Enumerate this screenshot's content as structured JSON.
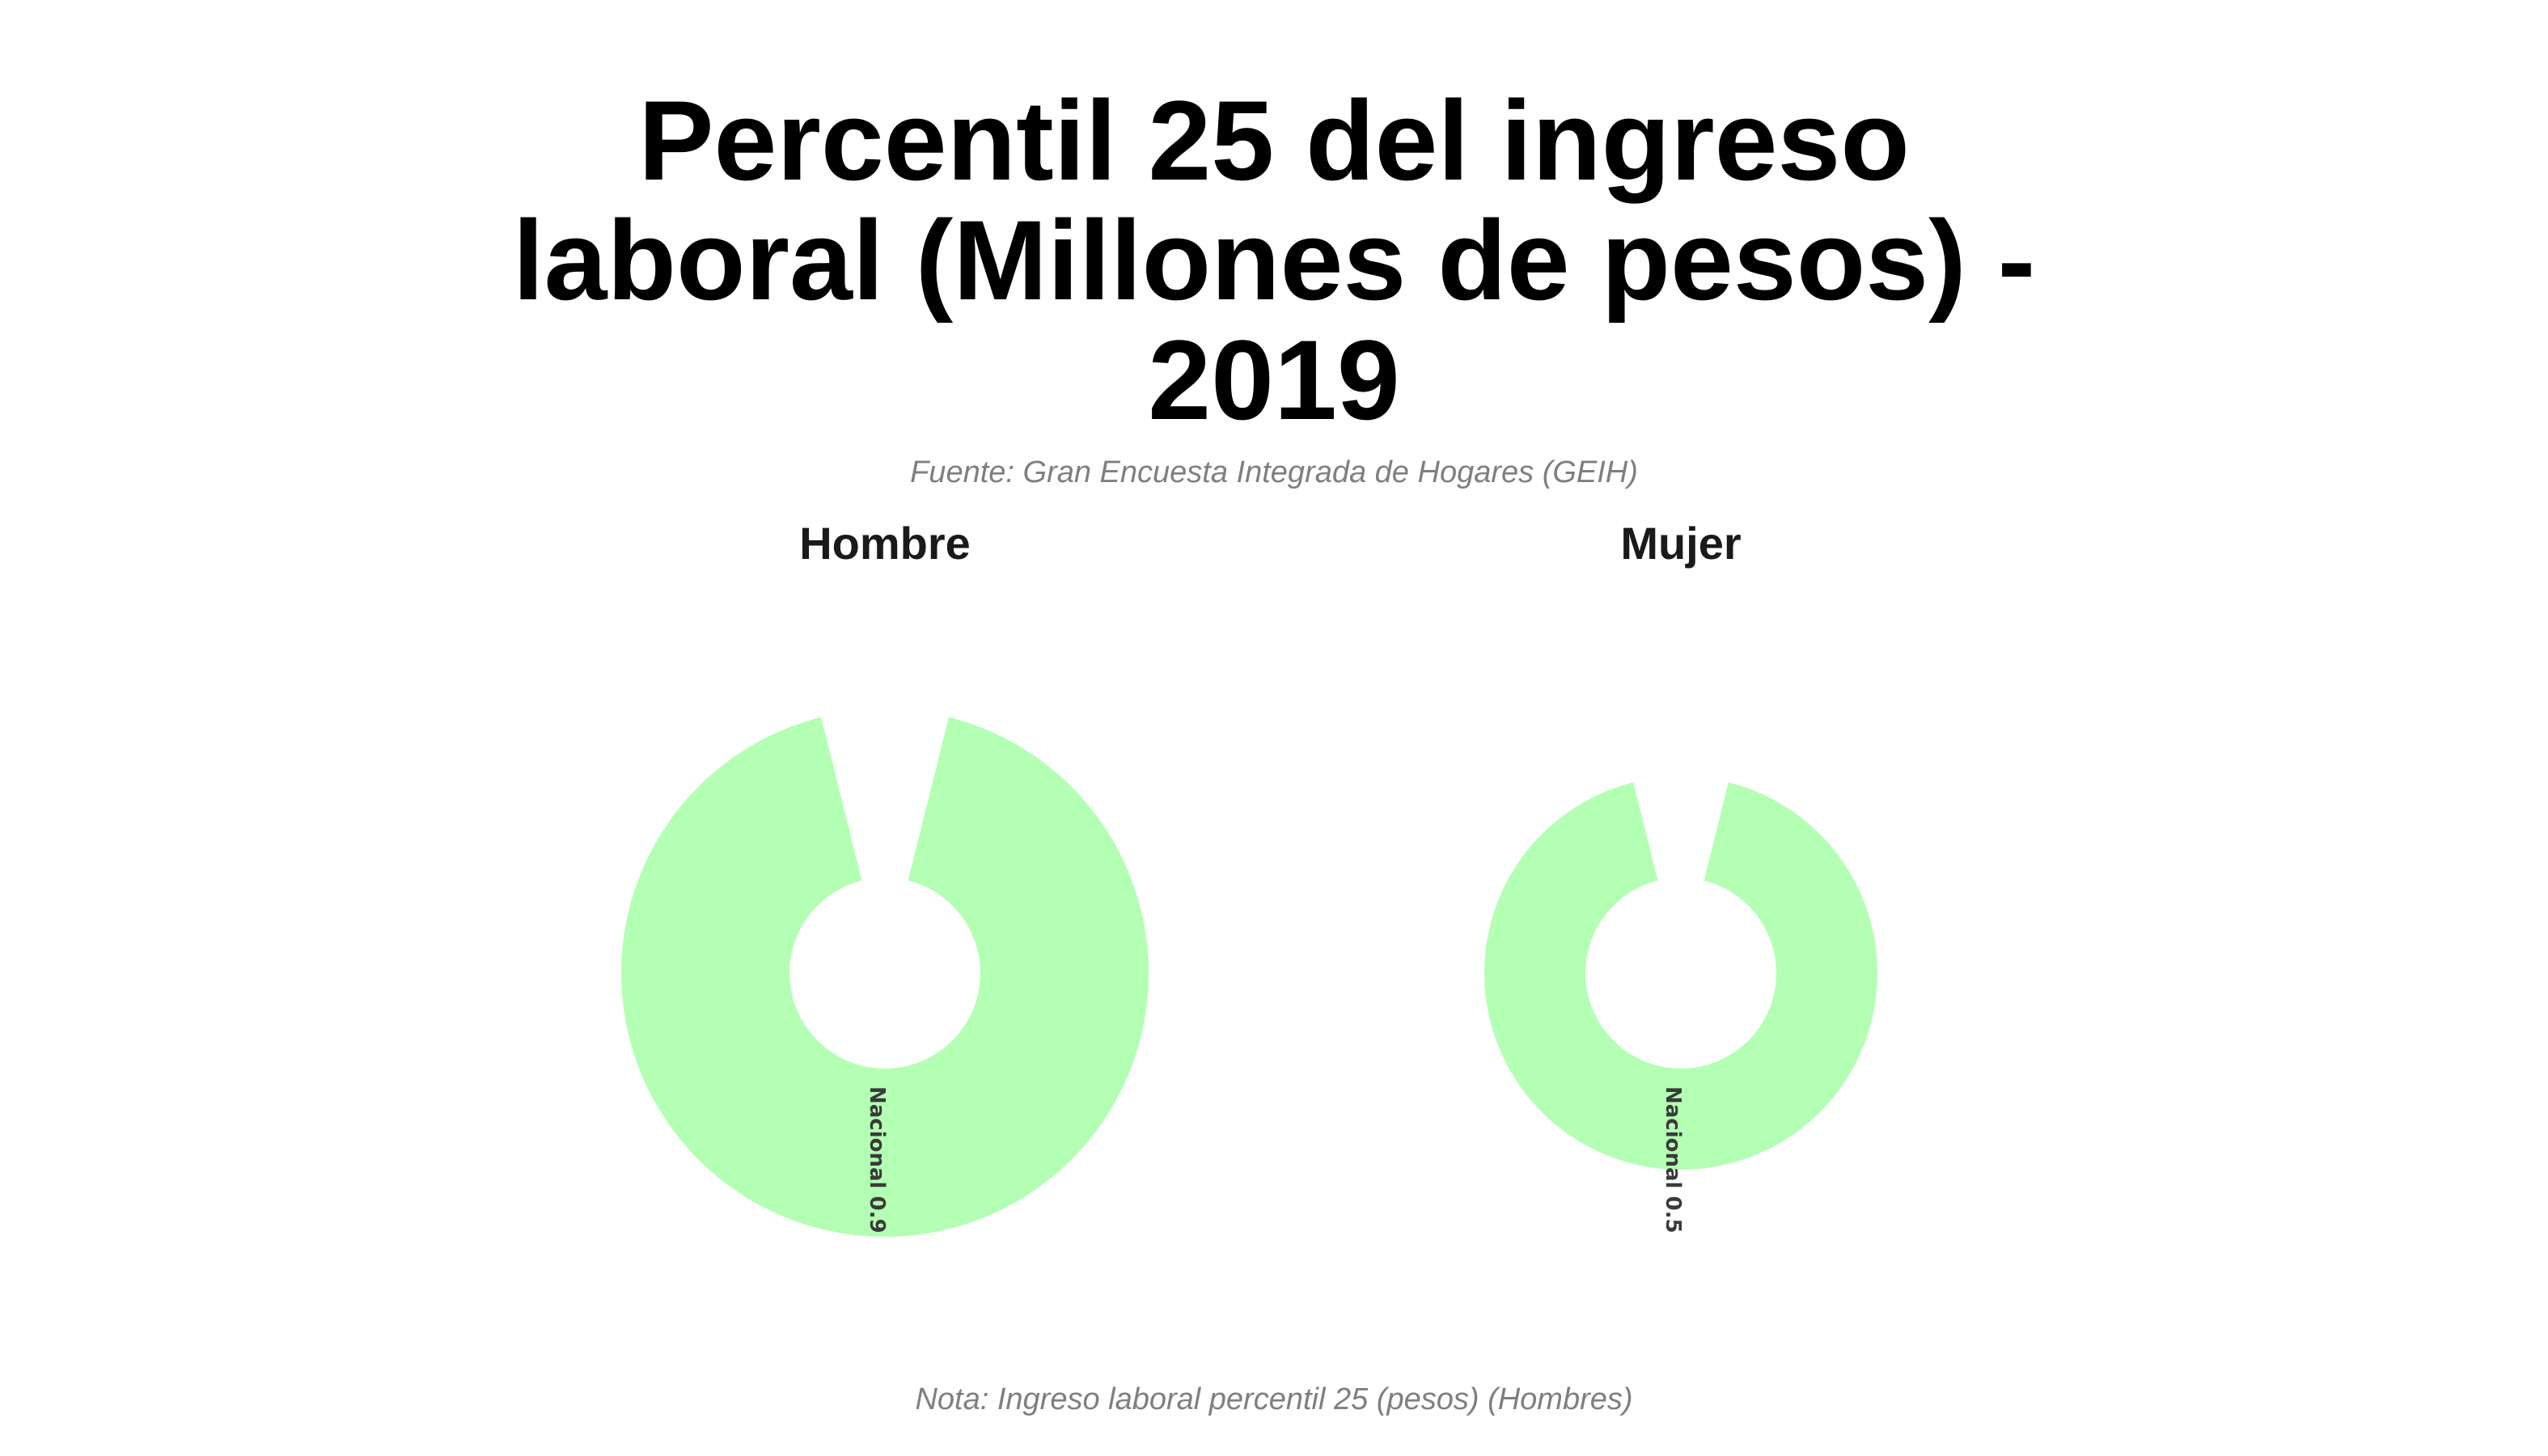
{
  "chart_data": {
    "type": "pie",
    "title": "Percentil 25 del ingreso laboral (Millones de pesos) - 2019",
    "subtitle": "Fuente: Gran Encuesta Integrada de Hogares (GEIH)",
    "note": "Nota: Ingreso laboral percentil 25 (pesos) (Hombres)",
    "color": "#b3ffb3",
    "panels": [
      {
        "title": "Hombre",
        "slices": [
          {
            "category": "Nacional",
            "value": 0.9,
            "label": "Nacional 0.9"
          }
        ]
      },
      {
        "title": "Mujer",
        "slices": [
          {
            "category": "Nacional",
            "value": 0.5,
            "label": "Nacional 0.5"
          }
        ]
      }
    ]
  }
}
